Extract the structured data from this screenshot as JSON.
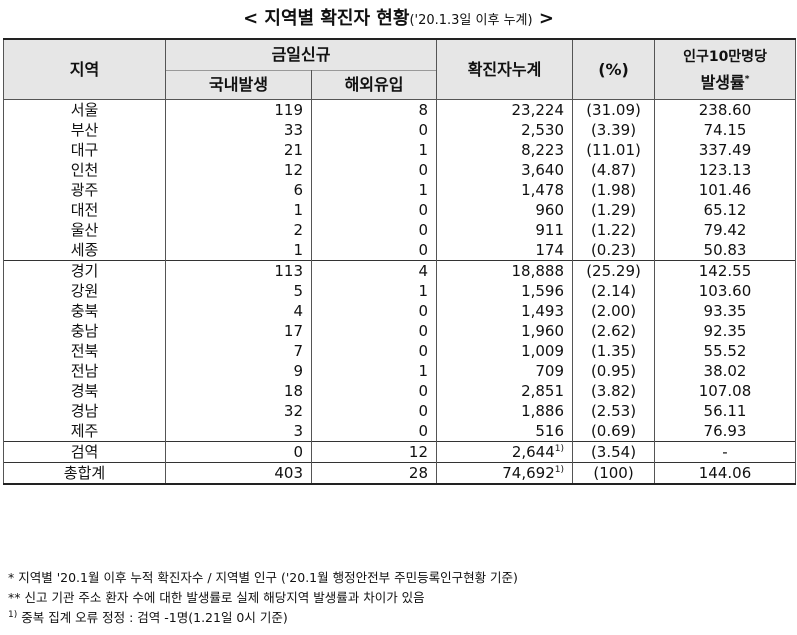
{
  "title": {
    "main": "< 지역별 확진자 현황",
    "sub": "('20.1.3일 이후 누계)",
    "end": " >"
  },
  "header": {
    "region": "지역",
    "today_new": "금일신규",
    "domestic": "국내발생",
    "imported": "해외유입",
    "cumulative": "확진자누계",
    "percent": "(%)",
    "rate_line1": "인구10만명당",
    "rate_line2": "발생률",
    "rate_mark": "*"
  },
  "rows": [
    {
      "region": "서울",
      "domestic": "119",
      "imported": "8",
      "cumulative": "23,224",
      "cum_note": "",
      "percent": "(31.09)",
      "rate": "238.60",
      "sep": false
    },
    {
      "region": "부산",
      "domestic": "33",
      "imported": "0",
      "cumulative": "2,530",
      "cum_note": "",
      "percent": "(3.39)",
      "rate": "74.15",
      "sep": false
    },
    {
      "region": "대구",
      "domestic": "21",
      "imported": "1",
      "cumulative": "8,223",
      "cum_note": "",
      "percent": "(11.01)",
      "rate": "337.49",
      "sep": false
    },
    {
      "region": "인천",
      "domestic": "12",
      "imported": "0",
      "cumulative": "3,640",
      "cum_note": "",
      "percent": "(4.87)",
      "rate": "123.13",
      "sep": false
    },
    {
      "region": "광주",
      "domestic": "6",
      "imported": "1",
      "cumulative": "1,478",
      "cum_note": "",
      "percent": "(1.98)",
      "rate": "101.46",
      "sep": false
    },
    {
      "region": "대전",
      "domestic": "1",
      "imported": "0",
      "cumulative": "960",
      "cum_note": "",
      "percent": "(1.29)",
      "rate": "65.12",
      "sep": false
    },
    {
      "region": "울산",
      "domestic": "2",
      "imported": "0",
      "cumulative": "911",
      "cum_note": "",
      "percent": "(1.22)",
      "rate": "79.42",
      "sep": false
    },
    {
      "region": "세종",
      "domestic": "1",
      "imported": "0",
      "cumulative": "174",
      "cum_note": "",
      "percent": "(0.23)",
      "rate": "50.83",
      "sep": false
    },
    {
      "region": "경기",
      "domestic": "113",
      "imported": "4",
      "cumulative": "18,888",
      "cum_note": "",
      "percent": "(25.29)",
      "rate": "142.55",
      "sep": true
    },
    {
      "region": "강원",
      "domestic": "5",
      "imported": "1",
      "cumulative": "1,596",
      "cum_note": "",
      "percent": "(2.14)",
      "rate": "103.60",
      "sep": false
    },
    {
      "region": "충북",
      "domestic": "4",
      "imported": "0",
      "cumulative": "1,493",
      "cum_note": "",
      "percent": "(2.00)",
      "rate": "93.35",
      "sep": false
    },
    {
      "region": "충남",
      "domestic": "17",
      "imported": "0",
      "cumulative": "1,960",
      "cum_note": "",
      "percent": "(2.62)",
      "rate": "92.35",
      "sep": false
    },
    {
      "region": "전북",
      "domestic": "7",
      "imported": "0",
      "cumulative": "1,009",
      "cum_note": "",
      "percent": "(1.35)",
      "rate": "55.52",
      "sep": false
    },
    {
      "region": "전남",
      "domestic": "9",
      "imported": "1",
      "cumulative": "709",
      "cum_note": "",
      "percent": "(0.95)",
      "rate": "38.02",
      "sep": false
    },
    {
      "region": "경북",
      "domestic": "18",
      "imported": "0",
      "cumulative": "2,851",
      "cum_note": "",
      "percent": "(3.82)",
      "rate": "107.08",
      "sep": false
    },
    {
      "region": "경남",
      "domestic": "32",
      "imported": "0",
      "cumulative": "1,886",
      "cum_note": "",
      "percent": "(2.53)",
      "rate": "56.11",
      "sep": false
    },
    {
      "region": "제주",
      "domestic": "3",
      "imported": "0",
      "cumulative": "516",
      "cum_note": "",
      "percent": "(0.69)",
      "rate": "76.93",
      "sep": false
    },
    {
      "region": "검역",
      "domestic": "0",
      "imported": "12",
      "cumulative": "2,644",
      "cum_note": "1)",
      "percent": "(3.54)",
      "rate": "-",
      "sep": true
    },
    {
      "region": "총합계",
      "domestic": "403",
      "imported": "28",
      "cumulative": "74,692",
      "cum_note": "1)",
      "percent": "(100)",
      "rate": "144.06",
      "sep": true
    }
  ],
  "notes": {
    "note1": " * 지역별 '20.1월 이후 누적 확진자수 / 지역별 인구 ('20.1월 행정안전부 주민등록인구현황 기준)",
    "note2": "** 신고 기관 주소 환자 수에 대한 발생률로 실제 해당지역 발생률과 차이가 있음",
    "note3_mark": "1)",
    "note3": " 중복 집계 오류 정정 : 검역 -1명(1.21일 0시 기준)"
  }
}
